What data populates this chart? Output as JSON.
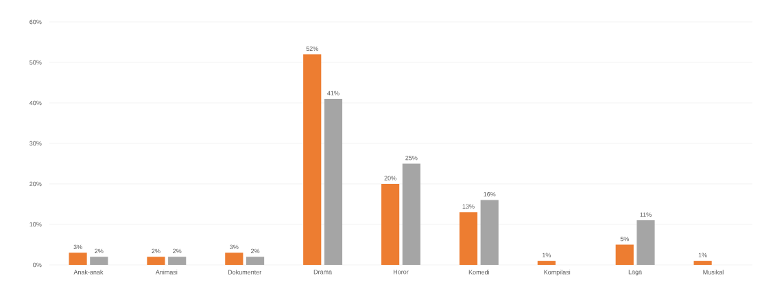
{
  "chart_data": {
    "type": "bar",
    "categories": [
      "Anak-anak",
      "Animasi",
      "Dokumenter",
      "Drama",
      "Horor",
      "Komedi",
      "Kompilasi",
      "Laga",
      "Musikal"
    ],
    "series": [
      {
        "color": "#ed7d31",
        "values": [
          3,
          2,
          3,
          52,
          20,
          13,
          1,
          5,
          1
        ],
        "value_labels": [
          "3%",
          "2%",
          "3%",
          "52%",
          "20%",
          "13%",
          "1%",
          "5%",
          "1%"
        ]
      },
      {
        "color": "#a5a5a5",
        "values": [
          2,
          2,
          2,
          41,
          25,
          16,
          null,
          11,
          null
        ],
        "value_labels": [
          "2%",
          "2%",
          "2%",
          "41%",
          "25%",
          "16%",
          null,
          "11%",
          null
        ]
      }
    ],
    "ylim": [
      0,
      60
    ],
    "yticks": [
      {
        "value": 0,
        "label": "0%"
      },
      {
        "value": 10,
        "label": "10%"
      },
      {
        "value": 20,
        "label": "20%"
      },
      {
        "value": 30,
        "label": "30%"
      },
      {
        "value": 40,
        "label": "40%"
      },
      {
        "value": 50,
        "label": "50%"
      },
      {
        "value": 60,
        "label": "60%"
      }
    ],
    "grid": "y"
  }
}
